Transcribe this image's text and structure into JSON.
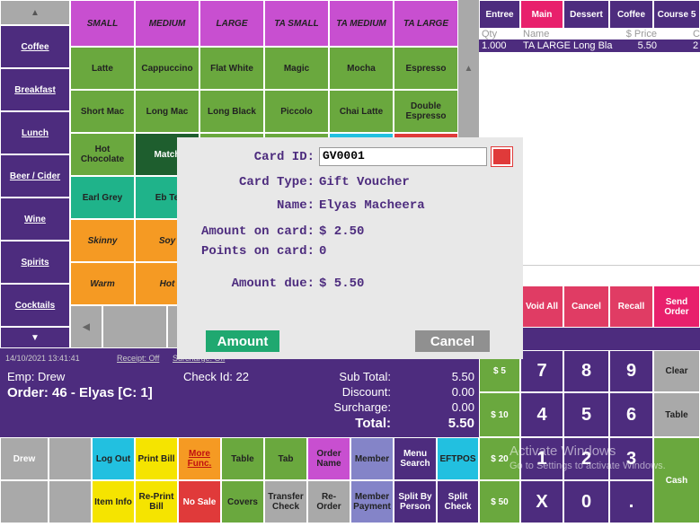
{
  "nav": {
    "up": "▲",
    "down": "▼",
    "categories": [
      "Coffee",
      "Breakfast",
      "Lunch",
      "Beer / Cider",
      "Wine",
      "Spirits",
      "Cocktails"
    ]
  },
  "menu": {
    "sizes": [
      "SMALL",
      "MEDIUM",
      "LARGE",
      "TA SMALL",
      "TA MEDIUM",
      "TA LARGE"
    ],
    "rows": [
      [
        "Latte",
        "Cappuccino",
        "Flat White",
        "Magic",
        "Mocha",
        "Espresso"
      ],
      [
        "Short Mac",
        "Long Mac",
        "Long Black",
        "Piccolo",
        "Chai Latte",
        "Double Espresso"
      ],
      [
        "Hot Chocolate",
        "Match"
      ],
      [
        "Earl Grey",
        "Eb Te"
      ],
      [
        "Skinny",
        "Soy"
      ],
      [
        "Warm",
        "Hot"
      ]
    ],
    "left_arrow": "◀",
    "scroll_up": "▲"
  },
  "order": {
    "tabs": [
      "Entree",
      "Main",
      "Dessert",
      "Coffee",
      "Course 5"
    ],
    "columns": [
      "Qty",
      "Name",
      "$ Price",
      "C"
    ],
    "lines": [
      [
        "1.000",
        "TA LARGE Long Bla",
        "5.50",
        "2"
      ]
    ]
  },
  "dialog": {
    "fields": [
      {
        "label": "Card ID:",
        "value": "GV0001"
      },
      {
        "label": "Card Type:",
        "value": "Gift Voucher"
      },
      {
        "label": "Name:",
        "value": "Elyas Macheera"
      },
      {
        "label": "Amount on card:",
        "value": "$ 2.50"
      },
      {
        "label": "Points on card:",
        "value": "0"
      },
      {
        "label": "Amount due:",
        "value": "$ 5.50"
      }
    ],
    "buttons": [
      "Amount",
      "Cancel"
    ]
  },
  "status": {
    "datetime": "14/10/2021 13:41:41",
    "receipt": "Receipt: Off",
    "surcharge": "Surcharge: Off",
    "employee": "Emp: Drew",
    "check": "Check Id: 22",
    "order": "Order: 46 - Elyas [C:  1]",
    "totals": [
      {
        "label": "Sub Total:",
        "value": "5.50"
      },
      {
        "label": "Discount:",
        "value": "0.00"
      },
      {
        "label": "Surcharge:",
        "value": "0.00"
      },
      {
        "label": "Total:",
        "value": "5.50"
      }
    ]
  },
  "function_buttons": [
    [
      "Drew",
      null,
      "Log Out",
      "Print Bill",
      "More Func.",
      "Table",
      "Tab",
      "Order Name",
      "Member",
      "Menu Search",
      "EFTPOS"
    ],
    [
      null,
      null,
      "Item Info",
      "Re-Print Bill",
      "No Sale",
      "Covers",
      "Transfer Check",
      "Re-Order",
      "Member Payment",
      "Split By Person",
      "Split Check"
    ]
  ],
  "keypad": {
    "actions": [
      "Void All",
      "Cancel",
      "Recall",
      "Send Order"
    ],
    "cash": [
      "$ 5",
      "$ 10",
      "$ 20",
      "$ 50"
    ],
    "keys": [
      [
        "7",
        "8",
        "9",
        "Clear"
      ],
      [
        "4",
        "5",
        "6",
        "Table"
      ],
      [
        "1",
        "2",
        "3",
        "Cash"
      ],
      [
        "X",
        "0",
        "."
      ]
    ]
  },
  "watermark": {
    "title": "Activate Windows",
    "subtitle": "Go to Settings to activate Windows."
  }
}
